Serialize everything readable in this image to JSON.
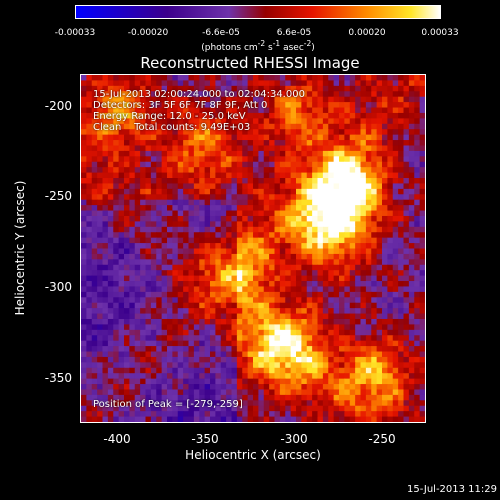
{
  "colorbar": {
    "ticks": [
      "-0.00033",
      "-0.00020",
      "-6.6e-05",
      "6.6e-05",
      "0.00020",
      "0.00033"
    ],
    "units_html": "(photons cm<sup>-2</sup> s<sup>-1</sup> asec<sup>-2</sup>)",
    "range": [
      -0.00033,
      0.00033
    ]
  },
  "title": "Reconstructed RHESSI Image",
  "info": {
    "time": "15-Jul-2013 02:00:24.000 to 02:04:34.000",
    "detectors": "Detectors: 3F 5F 6F 7F 8F 9F, Att 0",
    "energy": "Energy Range: 12.0 - 25.0 keV",
    "method": "Clean    Total counts: 9.49E+03",
    "peak": "Position of Peak = [-279,-259]"
  },
  "axes": {
    "xlabel": "Heliocentric X (arcsec)",
    "ylabel": "Heliocentric Y (arcsec)",
    "xticks": [
      "-400",
      "-350",
      "-300",
      "-250"
    ],
    "yticks": [
      "-200",
      "-250",
      "-300",
      "-350"
    ],
    "xlim": [
      -418,
      -226
    ],
    "ylim": [
      -375,
      -183
    ]
  },
  "footer": "15-Jul-2013 11:29"
}
